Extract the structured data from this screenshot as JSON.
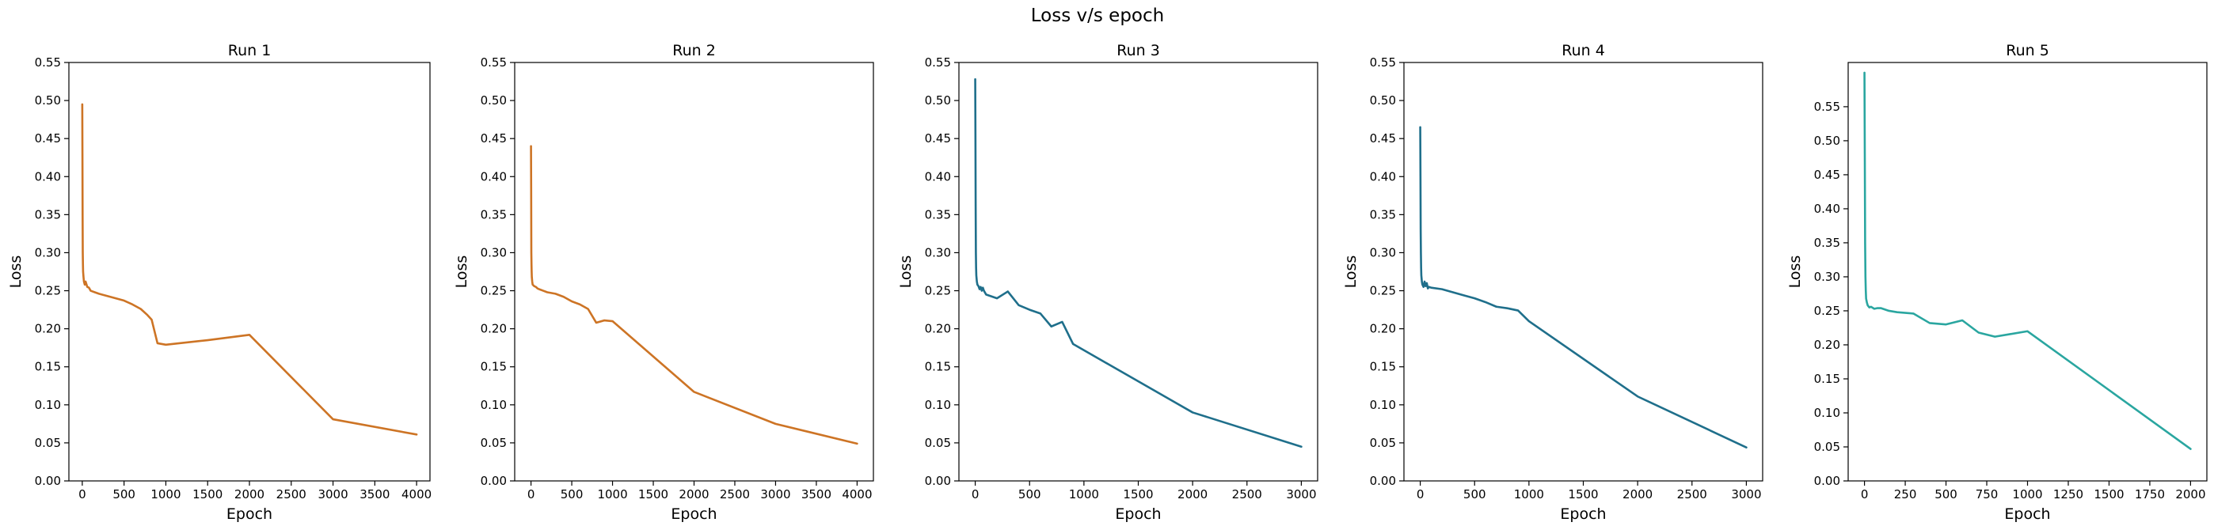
{
  "chart_data": {
    "title": "Loss v/s epoch",
    "type": "line",
    "subplots": [
      {
        "title": "Run 1",
        "xlabel": "Epoch",
        "ylabel": "Loss",
        "xlim": [
          -160,
          4160
        ],
        "ylim": [
          0,
          0.55
        ],
        "xticks": [
          0,
          500,
          1000,
          1500,
          2000,
          2500,
          3000,
          3500,
          4000
        ],
        "yticks": [
          0.0,
          0.05,
          0.1,
          0.15,
          0.2,
          0.25,
          0.3,
          0.35,
          0.4,
          0.45,
          0.5,
          0.55
        ],
        "color": "#cd7425",
        "series": [
          {
            "x": [
              0,
              2,
              4,
              6,
              8,
              10,
              15,
              20,
              30,
              40,
              60,
              80,
              100,
              150,
              200,
              300,
              400,
              500,
              600,
              700,
              780,
              830,
              900,
              1000,
              1500,
              2000,
              3000,
              4000
            ],
            "y": [
              0.495,
              0.43,
              0.35,
              0.3,
              0.285,
              0.275,
              0.268,
              0.262,
              0.258,
              0.262,
              0.255,
              0.254,
              0.25,
              0.248,
              0.246,
              0.243,
              0.24,
              0.237,
              0.232,
              0.226,
              0.218,
              0.212,
              0.181,
              0.179,
              0.185,
              0.192,
              0.081,
              0.061
            ]
          }
        ]
      },
      {
        "title": "Run 2",
        "xlabel": "Epoch",
        "ylabel": "Loss",
        "xlim": [
          -200,
          4200
        ],
        "ylim": [
          0,
          0.55
        ],
        "xticks": [
          0,
          500,
          1000,
          1500,
          2000,
          2500,
          3000,
          3500,
          4000
        ],
        "yticks": [
          0.0,
          0.05,
          0.1,
          0.15,
          0.2,
          0.25,
          0.3,
          0.35,
          0.4,
          0.45,
          0.5,
          0.55
        ],
        "color": "#cd7425",
        "series": [
          {
            "x": [
              0,
              2,
              4,
              6,
              8,
              10,
              15,
              20,
              30,
              40,
              60,
              80,
              100,
              150,
              200,
              300,
              400,
              500,
              600,
              700,
              800,
              900,
              1000,
              2000,
              3000,
              4000
            ],
            "y": [
              0.44,
              0.38,
              0.3,
              0.285,
              0.275,
              0.268,
              0.262,
              0.258,
              0.257,
              0.256,
              0.255,
              0.253,
              0.252,
              0.25,
              0.248,
              0.246,
              0.242,
              0.236,
              0.232,
              0.226,
              0.208,
              0.211,
              0.21,
              0.117,
              0.075,
              0.049
            ]
          }
        ]
      },
      {
        "title": "Run 3",
        "xlabel": "Epoch",
        "ylabel": "Loss",
        "xlim": [
          -150,
          3150
        ],
        "ylim": [
          0,
          0.55
        ],
        "xticks": [
          0,
          500,
          1000,
          1500,
          2000,
          2500,
          3000
        ],
        "yticks": [
          0.0,
          0.05,
          0.1,
          0.15,
          0.2,
          0.25,
          0.3,
          0.35,
          0.4,
          0.45,
          0.5,
          0.55
        ],
        "color": "#1f6f8b",
        "series": [
          {
            "x": [
              0,
              2,
              4,
              6,
              8,
              10,
              15,
              20,
              30,
              40,
              50,
              60,
              70,
              80,
              100,
              200,
              300,
              400,
              500,
              600,
              700,
              800,
              900,
              2000,
              3000
            ],
            "y": [
              0.528,
              0.45,
              0.36,
              0.3,
              0.28,
              0.27,
              0.262,
              0.258,
              0.256,
              0.252,
              0.255,
              0.25,
              0.254,
              0.25,
              0.245,
              0.24,
              0.249,
              0.231,
              0.225,
              0.22,
              0.203,
              0.209,
              0.18,
              0.09,
              0.045
            ]
          }
        ]
      },
      {
        "title": "Run 4",
        "xlabel": "Epoch",
        "ylabel": "Loss",
        "xlim": [
          -150,
          3150
        ],
        "ylim": [
          0,
          0.55
        ],
        "xticks": [
          0,
          500,
          1000,
          1500,
          2000,
          2500,
          3000
        ],
        "yticks": [
          0.0,
          0.05,
          0.1,
          0.15,
          0.2,
          0.25,
          0.3,
          0.35,
          0.4,
          0.45,
          0.5,
          0.55
        ],
        "color": "#1f6f8b",
        "series": [
          {
            "x": [
              0,
              2,
              4,
              6,
              8,
              10,
              15,
              20,
              30,
              40,
              50,
              60,
              70,
              80,
              100,
              200,
              300,
              400,
              500,
              600,
              700,
              800,
              900,
              1000,
              2000,
              3000
            ],
            "y": [
              0.465,
              0.4,
              0.33,
              0.3,
              0.28,
              0.27,
              0.262,
              0.258,
              0.255,
              0.262,
              0.256,
              0.26,
              0.253,
              0.255,
              0.254,
              0.252,
              0.248,
              0.244,
              0.24,
              0.235,
              0.229,
              0.227,
              0.224,
              0.21,
              0.111,
              0.044
            ]
          }
        ]
      },
      {
        "title": "Run 5",
        "xlabel": "Epoch",
        "ylabel": "Loss",
        "xlim": [
          -100,
          2100
        ],
        "ylim": [
          0,
          0.615
        ],
        "xticks": [
          0,
          250,
          500,
          750,
          1000,
          1250,
          1500,
          1750,
          2000
        ],
        "yticks": [
          0.0,
          0.05,
          0.1,
          0.15,
          0.2,
          0.25,
          0.3,
          0.35,
          0.4,
          0.45,
          0.5,
          0.55
        ],
        "color": "#2aa6a0",
        "series": [
          {
            "x": [
              0,
              2,
              4,
              6,
              8,
              10,
              15,
              20,
              30,
              40,
              60,
              80,
              100,
              150,
              200,
              300,
              400,
              500,
              600,
              700,
              800,
              900,
              1000,
              2000
            ],
            "y": [
              0.6,
              0.48,
              0.35,
              0.3,
              0.28,
              0.268,
              0.262,
              0.258,
              0.255,
              0.256,
              0.253,
              0.254,
              0.254,
              0.25,
              0.248,
              0.246,
              0.232,
              0.23,
              0.236,
              0.218,
              0.212,
              0.216,
              0.22,
              0.047
            ]
          }
        ]
      }
    ]
  }
}
